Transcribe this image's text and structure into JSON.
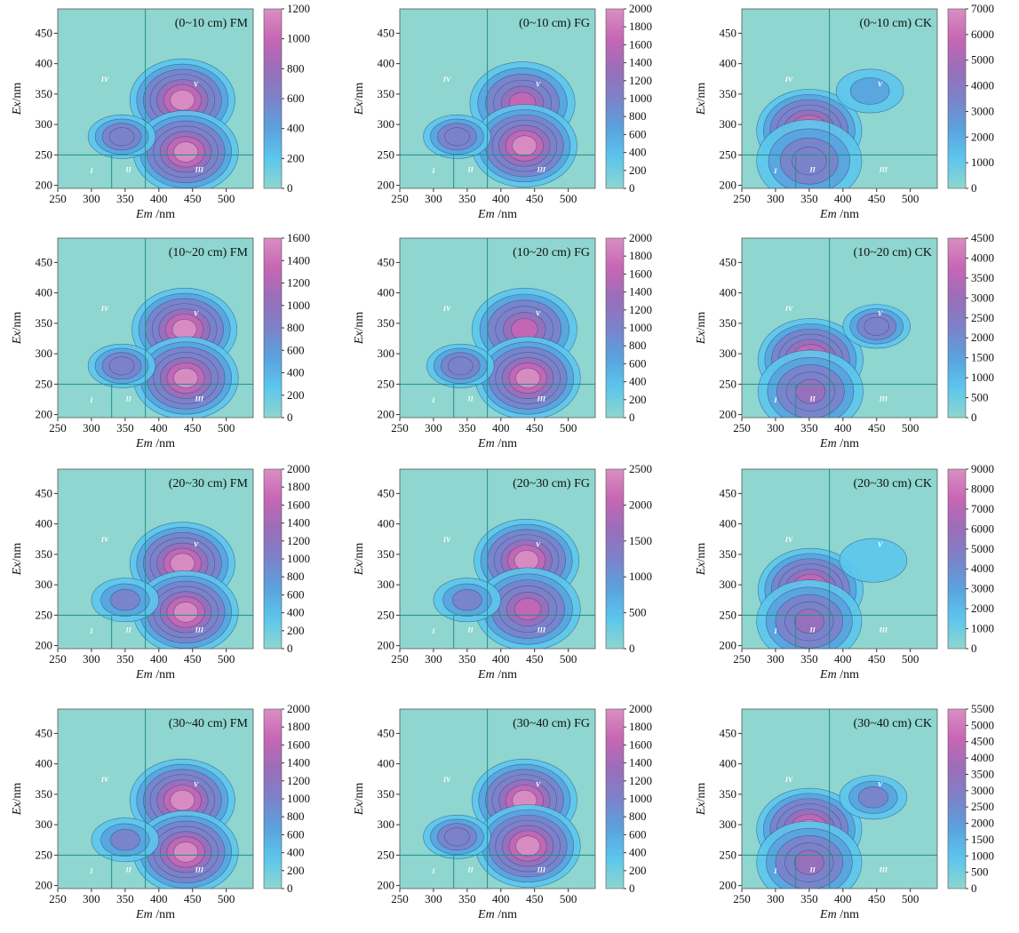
{
  "chart_data": {
    "type": "contour",
    "columns": [
      "FM",
      "FG",
      "CK"
    ],
    "rows": [
      "(0~10 cm)",
      "(10~20 cm)",
      "(20~30 cm)",
      "(30~40 cm)"
    ],
    "xlabel_italic": "Em",
    "xlabel_unit": "/nm",
    "ylabel_italic": "Ex",
    "ylabel_unit": "/nm",
    "xlim": [
      250,
      540
    ],
    "ylim": [
      195,
      490
    ],
    "xticks": [
      250,
      300,
      350,
      400,
      450,
      500
    ],
    "yticks": [
      200,
      250,
      300,
      350,
      400,
      450
    ],
    "region_labels": [
      "I",
      "II",
      "III",
      "IV",
      "V"
    ],
    "region_dividers": {
      "em": [
        330,
        380
      ],
      "ex": [
        250
      ]
    },
    "colormap": [
      "#8ed6cf",
      "#5cc6ec",
      "#5aa2de",
      "#7c82c9",
      "#9a6eb9",
      "#c766b4",
      "#d98fc2"
    ],
    "panels": [
      {
        "row": 0,
        "col": 0,
        "label": "(0~10 cm) FM",
        "cbar_ticks": [
          0,
          200,
          400,
          600,
          800,
          1000,
          1200
        ],
        "cbar_max": 1200,
        "peaks": [
          {
            "em": 435,
            "ex": 340,
            "intensity": 1200
          },
          {
            "em": 440,
            "ex": 255,
            "intensity": 1150
          },
          {
            "em": 345,
            "ex": 280,
            "intensity": 700
          }
        ]
      },
      {
        "row": 0,
        "col": 1,
        "label": "(0~10 cm) FG",
        "cbar_ticks": [
          0,
          200,
          400,
          600,
          800,
          1000,
          1200,
          1400,
          1600,
          1800,
          2000
        ],
        "cbar_max": 2000,
        "peaks": [
          {
            "em": 432,
            "ex": 335,
            "intensity": 1800
          },
          {
            "em": 435,
            "ex": 265,
            "intensity": 1900
          },
          {
            "em": 335,
            "ex": 280,
            "intensity": 1000
          }
        ]
      },
      {
        "row": 0,
        "col": 2,
        "label": "(0~10 cm) CK",
        "cbar_ticks": [
          0,
          1000,
          2000,
          3000,
          4000,
          5000,
          6000,
          7000
        ],
        "cbar_max": 7000,
        "peaks": [
          {
            "em": 350,
            "ex": 290,
            "intensity": 6500
          },
          {
            "em": 350,
            "ex": 240,
            "intensity": 4000
          },
          {
            "em": 440,
            "ex": 355,
            "intensity": 2000
          }
        ]
      },
      {
        "row": 1,
        "col": 0,
        "label": "(10~20 cm) FM",
        "cbar_ticks": [
          0,
          200,
          400,
          600,
          800,
          1000,
          1200,
          1400,
          1600
        ],
        "cbar_max": 1600,
        "peaks": [
          {
            "em": 438,
            "ex": 340,
            "intensity": 1500
          },
          {
            "em": 440,
            "ex": 260,
            "intensity": 1550
          },
          {
            "em": 345,
            "ex": 280,
            "intensity": 900
          }
        ]
      },
      {
        "row": 1,
        "col": 1,
        "label": "(10~20 cm) FG",
        "cbar_ticks": [
          0,
          200,
          400,
          600,
          800,
          1000,
          1200,
          1400,
          1600,
          1800,
          2000
        ],
        "cbar_max": 2000,
        "peaks": [
          {
            "em": 435,
            "ex": 340,
            "intensity": 1850
          },
          {
            "em": 440,
            "ex": 260,
            "intensity": 1900
          },
          {
            "em": 340,
            "ex": 280,
            "intensity": 1000
          }
        ]
      },
      {
        "row": 1,
        "col": 2,
        "label": "(10~20 cm) CK",
        "cbar_ticks": [
          0,
          500,
          1000,
          1500,
          2000,
          2500,
          3000,
          3500,
          4000,
          4500
        ],
        "cbar_max": 4500,
        "peaks": [
          {
            "em": 352,
            "ex": 290,
            "intensity": 4300
          },
          {
            "em": 352,
            "ex": 238,
            "intensity": 3200
          },
          {
            "em": 450,
            "ex": 345,
            "intensity": 2800
          }
        ]
      },
      {
        "row": 2,
        "col": 0,
        "label": "(20~30 cm) FM",
        "cbar_ticks": [
          0,
          200,
          400,
          600,
          800,
          1000,
          1200,
          1400,
          1600,
          1800,
          2000
        ],
        "cbar_max": 2000,
        "peaks": [
          {
            "em": 435,
            "ex": 335,
            "intensity": 1950
          },
          {
            "em": 440,
            "ex": 255,
            "intensity": 1900
          },
          {
            "em": 350,
            "ex": 275,
            "intensity": 900
          }
        ]
      },
      {
        "row": 2,
        "col": 1,
        "label": "(20~30 cm) FG",
        "cbar_ticks": [
          0,
          500,
          1000,
          1500,
          2000,
          2500
        ],
        "cbar_max": 2500,
        "peaks": [
          {
            "em": 438,
            "ex": 340,
            "intensity": 2400
          },
          {
            "em": 440,
            "ex": 260,
            "intensity": 2200
          },
          {
            "em": 350,
            "ex": 275,
            "intensity": 1100
          }
        ]
      },
      {
        "row": 2,
        "col": 2,
        "label": "(20~30 cm) CK",
        "cbar_ticks": [
          0,
          1000,
          2000,
          3000,
          4000,
          5000,
          6000,
          7000,
          8000,
          9000
        ],
        "cbar_max": 9000,
        "peaks": [
          {
            "em": 352,
            "ex": 292,
            "intensity": 8800
          },
          {
            "em": 350,
            "ex": 240,
            "intensity": 7000
          },
          {
            "em": 445,
            "ex": 340,
            "intensity": 1500
          }
        ]
      },
      {
        "row": 3,
        "col": 0,
        "label": "(30~40 cm) FM",
        "cbar_ticks": [
          0,
          200,
          400,
          600,
          800,
          1000,
          1200,
          1400,
          1600,
          1800,
          2000
        ],
        "cbar_max": 2000,
        "peaks": [
          {
            "em": 435,
            "ex": 340,
            "intensity": 1950
          },
          {
            "em": 440,
            "ex": 255,
            "intensity": 1900
          },
          {
            "em": 350,
            "ex": 275,
            "intensity": 900
          }
        ]
      },
      {
        "row": 3,
        "col": 1,
        "label": "(30~40 cm) FG",
        "cbar_ticks": [
          0,
          200,
          400,
          600,
          800,
          1000,
          1200,
          1400,
          1600,
          1800,
          2000
        ],
        "cbar_max": 2000,
        "peaks": [
          {
            "em": 435,
            "ex": 340,
            "intensity": 1900
          },
          {
            "em": 440,
            "ex": 265,
            "intensity": 1900
          },
          {
            "em": 335,
            "ex": 280,
            "intensity": 1100
          }
        ]
      },
      {
        "row": 3,
        "col": 2,
        "label": "(30~40 cm) CK",
        "cbar_ticks": [
          0,
          500,
          1000,
          1500,
          2000,
          2500,
          3000,
          3500,
          4000,
          4500,
          5000,
          5500
        ],
        "cbar_max": 5500,
        "peaks": [
          {
            "em": 350,
            "ex": 292,
            "intensity": 5400
          },
          {
            "em": 350,
            "ex": 238,
            "intensity": 3800
          },
          {
            "em": 445,
            "ex": 345,
            "intensity": 2000
          }
        ]
      }
    ]
  }
}
